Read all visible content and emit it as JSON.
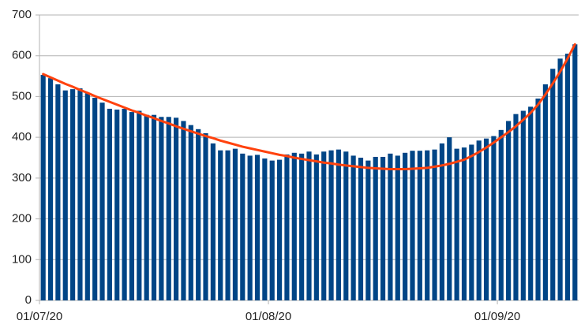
{
  "chart_data": {
    "type": "bar",
    "categories": [
      "01/07/20",
      null,
      null,
      null,
      null,
      null,
      null,
      null,
      null,
      null,
      null,
      null,
      null,
      null,
      null,
      null,
      null,
      null,
      null,
      null,
      null,
      null,
      null,
      null,
      null,
      null,
      null,
      null,
      null,
      null,
      null,
      "01/08/20",
      null,
      null,
      null,
      null,
      null,
      null,
      null,
      null,
      null,
      null,
      null,
      null,
      null,
      null,
      null,
      null,
      null,
      null,
      null,
      null,
      null,
      null,
      null,
      null,
      null,
      null,
      null,
      null,
      null,
      null,
      "01/09/20",
      null,
      null,
      null,
      null,
      null,
      null,
      null,
      null,
      null,
      null
    ],
    "series": [
      {
        "type": "bar",
        "color": "#004586",
        "values": [
          553,
          545,
          530,
          515,
          518,
          520,
          508,
          497,
          485,
          470,
          468,
          470,
          462,
          465,
          455,
          455,
          450,
          450,
          448,
          440,
          430,
          420,
          410,
          385,
          368,
          368,
          372,
          360,
          355,
          357,
          348,
          343,
          345,
          358,
          362,
          360,
          365,
          358,
          365,
          368,
          370,
          365,
          355,
          350,
          343,
          352,
          352,
          360,
          355,
          362,
          367,
          367,
          368,
          370,
          385,
          400,
          372,
          375,
          382,
          392,
          397,
          403,
          418,
          440,
          457,
          465,
          475,
          495,
          530,
          568,
          593,
          605,
          628
        ]
      },
      {
        "type": "line",
        "color": "#ff420e",
        "values": [
          555,
          547,
          539,
          531,
          524,
          516,
          509,
          501,
          494,
          487,
          480,
          473,
          466,
          460,
          453,
          447,
          440,
          434,
          427,
          421,
          415,
          409,
          403,
          398,
          392,
          387,
          382,
          377,
          373,
          369,
          365,
          361,
          357,
          354,
          350,
          347,
          344,
          341,
          338,
          336,
          333,
          331,
          329,
          327,
          325,
          324,
          323,
          322,
          322,
          322,
          323,
          324,
          325,
          328,
          331,
          335,
          340,
          345,
          354,
          364,
          375,
          387,
          400,
          413,
          427,
          443,
          460,
          480,
          505,
          532,
          561,
          593,
          628
        ]
      }
    ],
    "ylim": [
      0,
      700
    ],
    "yticks": [
      0,
      100,
      200,
      300,
      400,
      500,
      600,
      700
    ],
    "grid": true
  }
}
